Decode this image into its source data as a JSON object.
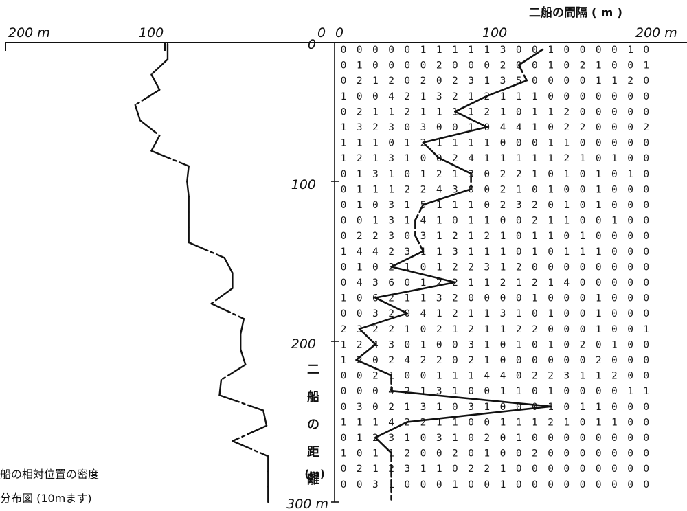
{
  "chart_data": {
    "type": "line",
    "title": "二船の間隔 ( m )",
    "caption": [
      "船の相対位置の密度",
      "分布図 (10mます)"
    ],
    "top_axis_left": {
      "ticks": [
        "200 m",
        "100",
        "0"
      ]
    },
    "top_axis_right": {
      "ticks": [
        "0",
        "100",
        "200 m"
      ]
    },
    "y_axis": {
      "ticks": [
        "0",
        "100",
        "200",
        "300 m"
      ],
      "label_chars": [
        "二",
        "船",
        "の",
        "距",
        "離"
      ],
      "label_unit": "(m)",
      "range": [
        0,
        300
      ]
    },
    "left_profile": {
      "x_range": [
        0,
        200
      ],
      "points": [
        [
          100,
          0
        ],
        [
          100,
          10
        ],
        [
          110,
          20
        ],
        [
          105,
          30
        ],
        [
          120,
          40
        ],
        [
          117,
          50
        ],
        [
          105,
          60
        ],
        [
          110,
          70
        ],
        [
          87,
          80
        ],
        [
          88,
          90
        ],
        [
          87,
          100
        ],
        [
          87,
          110
        ],
        [
          87,
          120
        ],
        [
          87,
          130
        ],
        [
          65,
          140
        ],
        [
          60,
          150
        ],
        [
          60,
          160
        ],
        [
          73,
          170
        ],
        [
          53,
          180
        ],
        [
          55,
          190
        ],
        [
          55,
          200
        ],
        [
          52,
          210
        ],
        [
          67,
          220
        ],
        [
          68,
          230
        ],
        [
          41,
          240
        ],
        [
          39,
          250
        ],
        [
          60,
          260
        ],
        [
          38,
          270
        ],
        [
          38,
          280
        ],
        [
          38,
          290
        ],
        [
          38,
          300
        ]
      ]
    },
    "density_grid": [
      "00000111113001000010",
      "01000020002001021001",
      "02120202313500001120",
      "10042132121110000000",
      "02112111121011200000",
      "13230300104410220002",
      "11101211110001100000",
      "12131002411111210100",
      "01310121302210101010",
      "01112243002101001000",
      "01031511102320101000",
      "00131410110021100100",
      "02230312121011010000",
      "14423113111010111000",
      "01021012231200000000",
      "04360122112121400000",
      "10621132000010001000",
      "00320412113101001000",
      "23221021211220001001",
      "12430100310101020100",
      "12024220210000002000",
      "00210011144022311200",
      "00042131001101000011",
      "03021310310001011000",
      "11142211001112101100",
      "01231031020100000000",
      "10112002010020000000",
      "02123110221000000000",
      "00310001001000000000"
    ],
    "ridge_path": [
      [
        12.5,
        0
      ],
      [
        11,
        10
      ],
      [
        11.5,
        20
      ],
      [
        9,
        30
      ],
      [
        7,
        40
      ],
      [
        9,
        50
      ],
      [
        5,
        60
      ],
      [
        6,
        70
      ],
      [
        8,
        80
      ],
      [
        8,
        90
      ],
      [
        5,
        100
      ],
      [
        4.5,
        110
      ],
      [
        4.5,
        120
      ],
      [
        5,
        130
      ],
      [
        3,
        140
      ],
      [
        7,
        150
      ],
      [
        2,
        160
      ],
      [
        4,
        170
      ],
      [
        1,
        180
      ],
      [
        2,
        190
      ],
      [
        0.8,
        200
      ],
      [
        3,
        210
      ],
      [
        3,
        220
      ],
      [
        13,
        230
      ],
      [
        4,
        240
      ],
      [
        2,
        250
      ],
      [
        3,
        260
      ],
      [
        3,
        270
      ],
      [
        3,
        280
      ],
      [
        3,
        290
      ]
    ]
  }
}
